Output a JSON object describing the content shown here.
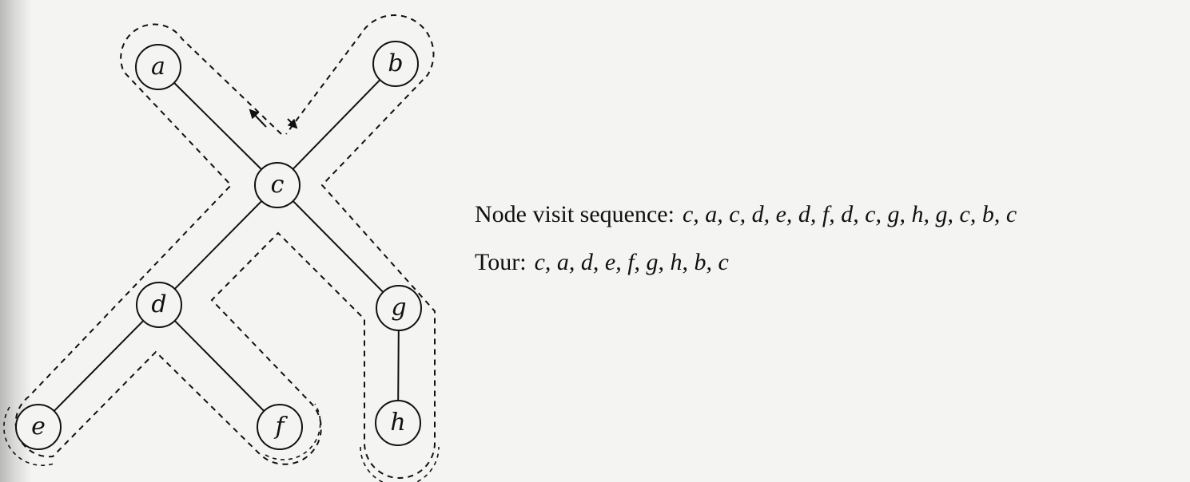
{
  "diagram": {
    "nodes": [
      {
        "id": "a",
        "label": "a"
      },
      {
        "id": "b",
        "label": "b"
      },
      {
        "id": "c",
        "label": "c"
      },
      {
        "id": "d",
        "label": "d"
      },
      {
        "id": "g",
        "label": "g"
      },
      {
        "id": "e",
        "label": "e"
      },
      {
        "id": "f",
        "label": "f"
      },
      {
        "id": "h",
        "label": "h"
      }
    ],
    "edges": [
      [
        "a",
        "c"
      ],
      [
        "b",
        "c"
      ],
      [
        "c",
        "d"
      ],
      [
        "c",
        "g"
      ],
      [
        "d",
        "e"
      ],
      [
        "d",
        "f"
      ],
      [
        "g",
        "h"
      ]
    ],
    "root": "c",
    "walk_style": "dashed"
  },
  "captions": {
    "visit_label": "Node visit sequence:",
    "visit_sequence": "c, a, c, d, e, d, f, d, c, g, h, g, c, b, c",
    "tour_label": "Tour:",
    "tour_sequence": "c, a, d, e, f, g, h, b, c"
  },
  "colors": {
    "ink": "#111111",
    "paper": "#f4f4f2"
  }
}
